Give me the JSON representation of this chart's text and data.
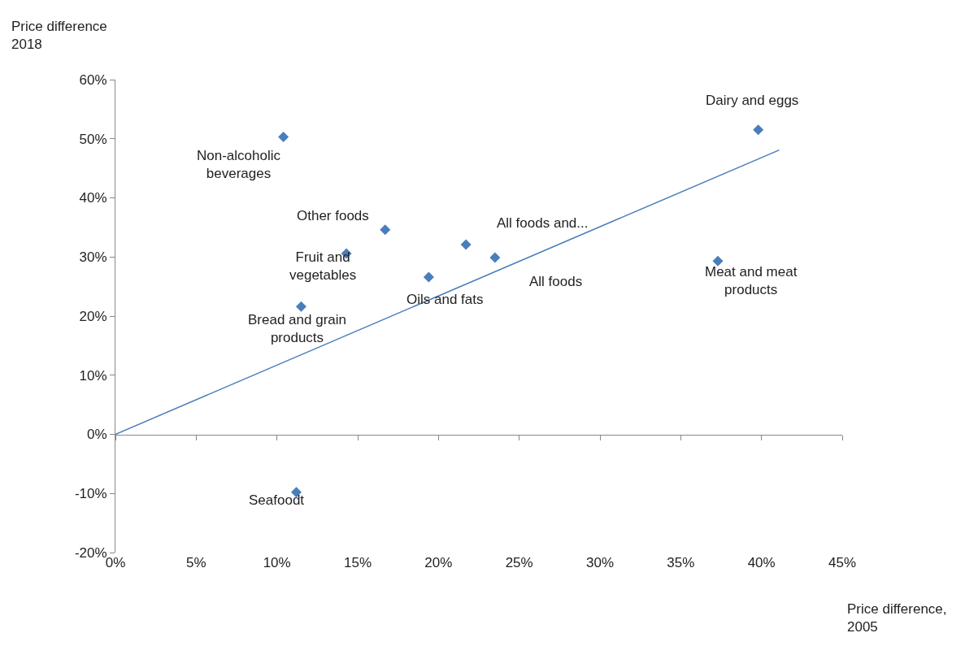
{
  "chart_data": {
    "type": "scatter",
    "ylabel": "Price difference\n2018",
    "xlabel": "Price difference,\n2005",
    "xlim": [
      0,
      45
    ],
    "xticks": [
      {
        "value": 0,
        "label": "0%"
      },
      {
        "value": 5,
        "label": "5%"
      },
      {
        "value": 10,
        "label": "10%"
      },
      {
        "value": 15,
        "label": "15%"
      },
      {
        "value": 20,
        "label": "20%"
      },
      {
        "value": 25,
        "label": "25%"
      },
      {
        "value": 30,
        "label": "30%"
      },
      {
        "value": 35,
        "label": "35%"
      },
      {
        "value": 40,
        "label": "40%"
      },
      {
        "value": 45,
        "label": "45%"
      }
    ],
    "ylim": [
      -20,
      60
    ],
    "yticks": [
      {
        "value": -20,
        "label": "-20%"
      },
      {
        "value": -10,
        "label": "-10%"
      },
      {
        "value": 0,
        "label": "0%"
      },
      {
        "value": 10,
        "label": "10%"
      },
      {
        "value": 20,
        "label": "20%"
      },
      {
        "value": 30,
        "label": "30%"
      },
      {
        "value": 40,
        "label": "40%"
      },
      {
        "value": 50,
        "label": "50%"
      },
      {
        "value": 60,
        "label": "60%"
      }
    ],
    "marker": "diamond",
    "series": [
      {
        "type": "scatter",
        "color": "#4a7ebb",
        "x": [
          10.4,
          39.8,
          16.7,
          14.3,
          11.5,
          19.4,
          21.7,
          23.5,
          37.3,
          11.2
        ],
        "values": [
          50.3,
          51.5,
          34.6,
          30.6,
          21.6,
          26.6,
          32.1,
          29.9,
          29.3,
          -9.8
        ]
      },
      {
        "type": "line",
        "color": "#4a7ebb",
        "marker": "none",
        "x": [
          0,
          41.1
        ],
        "values": [
          0,
          48.1
        ]
      }
    ],
    "annotations": [
      {
        "text": "Non-alcoholic\nbeverages",
        "x": 10.4,
        "y": 50.3
      },
      {
        "text": "Dairy and eggs",
        "x": 39.8,
        "y": 51.5
      },
      {
        "text": "Other foods",
        "x": 16.7,
        "y": 34.6
      },
      {
        "text": "Fruit and\nvegetables",
        "x": 14.3,
        "y": 30.6
      },
      {
        "text": "Bread and grain\nproducts",
        "x": 11.5,
        "y": 21.6
      },
      {
        "text": "Oils and fats",
        "x": 19.4,
        "y": 26.6
      },
      {
        "text": "All foods and...",
        "x": 21.7,
        "y": 32.1
      },
      {
        "text": "All foods",
        "x": 23.5,
        "y": 29.9
      },
      {
        "text": "Meat and meat\nproducts",
        "x": 37.3,
        "y": 29.3
      },
      {
        "text": "Seafoodt",
        "x": 11.2,
        "y": -9.8
      }
    ]
  }
}
